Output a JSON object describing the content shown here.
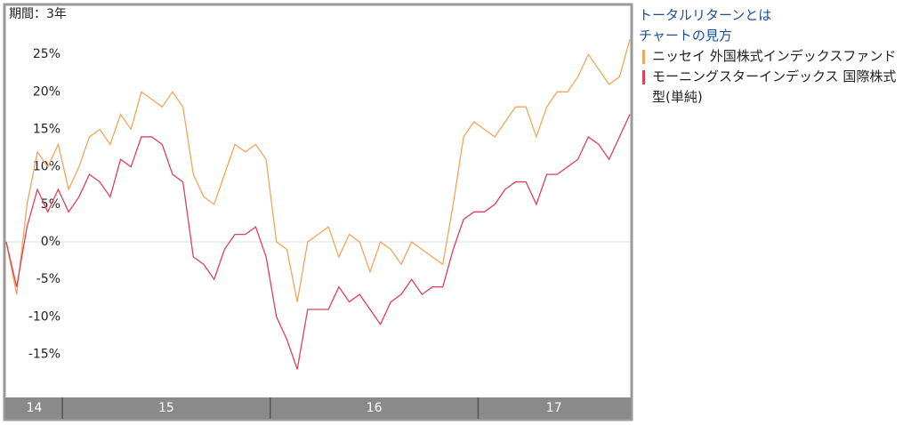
{
  "chart_data": {
    "type": "line",
    "period_label": "期間：3年",
    "x": [
      14.73,
      14.78,
      14.83,
      14.88,
      14.93,
      14.98,
      15.03,
      15.08,
      15.13,
      15.18,
      15.23,
      15.28,
      15.33,
      15.38,
      15.43,
      15.48,
      15.53,
      15.58,
      15.63,
      15.68,
      15.73,
      15.78,
      15.83,
      15.88,
      15.93,
      15.98,
      16.03,
      16.08,
      16.13,
      16.18,
      16.23,
      16.28,
      16.33,
      16.38,
      16.43,
      16.48,
      16.53,
      16.58,
      16.63,
      16.68,
      16.73,
      16.78,
      16.83,
      16.88,
      16.93,
      16.98,
      17.03,
      17.08,
      17.13,
      17.18,
      17.23,
      17.28,
      17.33,
      17.38,
      17.43,
      17.48,
      17.53,
      17.58,
      17.63,
      17.68,
      17.73
    ],
    "series": [
      {
        "name": "ニッセイ 外国株式インデックスファンド",
        "color": "#f5a55a",
        "values": [
          0,
          -7,
          5,
          12,
          10,
          13,
          7,
          10,
          14,
          15,
          13,
          17,
          15,
          20,
          19,
          18,
          20,
          18,
          9,
          6,
          5,
          9,
          13,
          12,
          13,
          11,
          0,
          -1,
          -8,
          0,
          1,
          2,
          -2,
          1,
          0,
          -4,
          0,
          -1,
          -3,
          0,
          -1,
          -2,
          -3,
          5,
          14,
          16,
          15,
          14,
          16,
          18,
          18,
          14,
          18,
          20,
          20,
          22,
          25,
          23,
          21,
          22,
          27
        ]
      },
      {
        "name": "モーニングスターインデックス 国際株式型(単純)",
        "color": "#e0405a",
        "values": [
          0,
          -6,
          2,
          7,
          4,
          7,
          4,
          6,
          9,
          8,
          6,
          11,
          10,
          14,
          14,
          13,
          9,
          8,
          -2,
          -3,
          -5,
          -1,
          1,
          1,
          2,
          -2,
          -10,
          -13,
          -17,
          -9,
          -9,
          -9,
          -6,
          -8,
          -7,
          -9,
          -11,
          -8,
          -7,
          -5,
          -7,
          -6,
          -6,
          -1,
          3,
          4,
          4,
          5,
          7,
          8,
          8,
          5,
          9,
          9,
          10,
          11,
          14,
          13,
          11,
          14,
          17
        ]
      }
    ],
    "xlim": [
      14.73,
      17.73
    ],
    "xticks": [
      15,
      16,
      17
    ],
    "x_segment_labels": [
      "14",
      "15",
      "16",
      "17"
    ],
    "ylim": [
      -20.5,
      31.3
    ],
    "yticks": [
      {
        "value": 25,
        "label": "25%"
      },
      {
        "value": 20,
        "label": "20%"
      },
      {
        "value": 15,
        "label": "15%"
      },
      {
        "value": 10,
        "label": "10%"
      },
      {
        "value": 5,
        "label": "5%"
      },
      {
        "value": 0,
        "label": "0%"
      },
      {
        "value": -5,
        "label": "-5%"
      },
      {
        "value": -10,
        "label": "-10%"
      },
      {
        "value": -15,
        "label": "-15%"
      }
    ],
    "grid": false
  },
  "panel": {
    "links": [
      "トータルリターンとは",
      "チャートの見方"
    ]
  }
}
